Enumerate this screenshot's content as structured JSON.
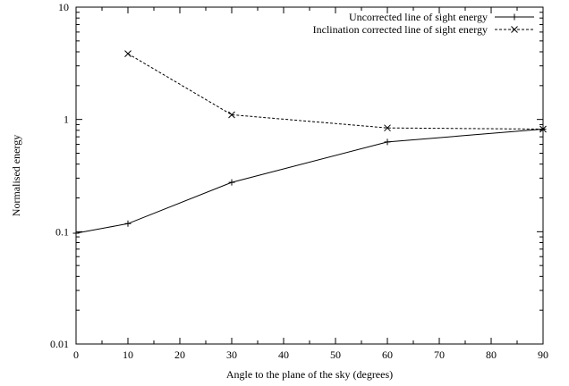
{
  "chart_data": {
    "type": "line",
    "xlabel": "Angle to the plane of the sky (degrees)",
    "ylabel": "Normalised energy",
    "xlim": [
      0,
      90
    ],
    "ylim": [
      0.01,
      10
    ],
    "yscale": "log",
    "grid": false,
    "legend_position": "top-right",
    "x_ticks": [
      0,
      10,
      20,
      30,
      40,
      50,
      60,
      70,
      80,
      90
    ],
    "x_tick_labels": [
      "0",
      "10",
      "20",
      "30",
      "40",
      "50",
      "60",
      "70",
      "80",
      "90"
    ],
    "y_ticks": [
      0.01,
      0.1,
      1,
      10
    ],
    "y_tick_labels": [
      "0.01",
      "0.1",
      "1",
      "10"
    ],
    "series": [
      {
        "name": "Uncorrected line of sight energy",
        "line_style": "solid",
        "marker": "plus",
        "color": "#000000",
        "x": [
          0,
          10,
          30,
          60,
          90
        ],
        "y": [
          0.097,
          0.118,
          0.275,
          0.63,
          0.82
        ]
      },
      {
        "name": "Inclination corrected line of sight energy",
        "line_style": "dashed",
        "marker": "cross",
        "color": "#000000",
        "x": [
          10,
          30,
          60,
          90
        ],
        "y": [
          3.85,
          1.1,
          0.84,
          0.82
        ]
      }
    ]
  }
}
